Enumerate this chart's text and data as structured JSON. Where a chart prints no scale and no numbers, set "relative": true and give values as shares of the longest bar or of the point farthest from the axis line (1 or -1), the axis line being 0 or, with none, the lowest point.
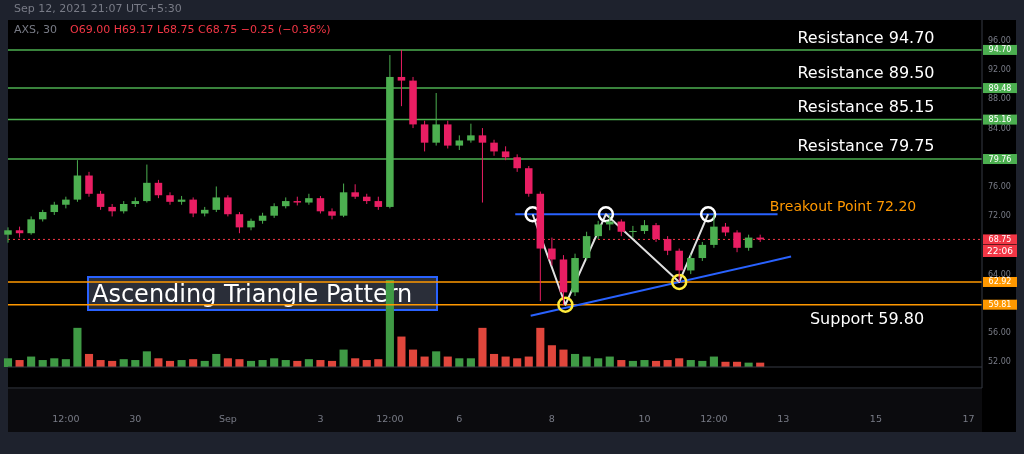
{
  "chart_data": [
    {
      "type": "candlestick",
      "title": "AXS, 30",
      "subtitle": "Sep 12, 2021 21:07 UTC+5:30",
      "x": [
        "2021-08-27T06:00",
        "2021-08-27T12:00",
        "2021-08-27T18:00",
        "2021-08-28T00:00",
        "2021-08-28T06:00",
        "2021-08-28T12:00",
        "2021-08-28T18:00",
        "2021-08-29T00:00",
        "2021-08-29T06:00",
        "2021-08-29T12:00",
        "2021-08-29T18:00",
        "2021-08-30T00:00",
        "2021-08-30T06:00",
        "2021-08-30T12:00",
        "2021-08-30T18:00",
        "2021-08-31T00:00",
        "2021-08-31T06:00",
        "2021-08-31T12:00",
        "2021-08-31T18:00",
        "2021-09-01T00:00",
        "2021-09-01T06:00",
        "2021-09-01T12:00",
        "2021-09-01T18:00",
        "2021-09-02T00:00",
        "2021-09-02T06:00",
        "2021-09-02T12:00",
        "2021-09-02T18:00",
        "2021-09-03T00:00",
        "2021-09-03T06:00",
        "2021-09-03T12:00",
        "2021-09-03T18:00",
        "2021-09-04T00:00",
        "2021-09-04T06:00",
        "2021-09-04T12:00",
        "2021-09-04T18:00",
        "2021-09-05T00:00",
        "2021-09-05T06:00",
        "2021-09-05T12:00",
        "2021-09-05T18:00",
        "2021-09-06T00:00",
        "2021-09-06T06:00",
        "2021-09-06T12:00",
        "2021-09-06T18:00",
        "2021-09-07T00:00",
        "2021-09-07T06:00",
        "2021-09-07T12:00",
        "2021-09-07T18:00",
        "2021-09-08T00:00",
        "2021-09-08T06:00",
        "2021-09-08T12:00",
        "2021-09-08T18:00",
        "2021-09-09T00:00",
        "2021-09-09T06:00",
        "2021-09-09T12:00",
        "2021-09-09T18:00",
        "2021-09-10T00:00",
        "2021-09-10T06:00",
        "2021-09-10T12:00",
        "2021-09-10T18:00",
        "2021-09-11T00:00",
        "2021-09-11T06:00",
        "2021-09-11T12:00",
        "2021-09-11T18:00",
        "2021-09-12T00:00",
        "2021-09-12T06:00",
        "2021-09-12T12:00"
      ],
      "ohlc": [
        [
          69.4,
          70.4,
          68.3,
          70.0
        ],
        [
          70.0,
          70.5,
          69.0,
          69.6
        ],
        [
          69.6,
          71.9,
          69.4,
          71.5
        ],
        [
          71.5,
          72.8,
          71.2,
          72.5
        ],
        [
          72.5,
          73.9,
          72.1,
          73.5
        ],
        [
          73.5,
          74.6,
          73.0,
          74.2
        ],
        [
          74.2,
          79.6,
          73.9,
          77.5
        ],
        [
          77.5,
          78.0,
          74.6,
          75.0
        ],
        [
          75.0,
          75.4,
          72.8,
          73.2
        ],
        [
          73.2,
          73.6,
          71.9,
          72.6
        ],
        [
          72.6,
          74.0,
          72.3,
          73.6
        ],
        [
          73.6,
          74.5,
          73.2,
          74.0
        ],
        [
          74.0,
          79.0,
          73.8,
          76.5
        ],
        [
          76.5,
          76.9,
          74.4,
          74.8
        ],
        [
          74.8,
          75.2,
          73.5,
          73.9
        ],
        [
          73.9,
          74.7,
          73.5,
          74.2
        ],
        [
          74.2,
          74.5,
          71.8,
          72.3
        ],
        [
          72.3,
          73.2,
          71.9,
          72.8
        ],
        [
          72.8,
          76.0,
          72.5,
          74.5
        ],
        [
          74.5,
          74.8,
          71.9,
          72.2
        ],
        [
          72.2,
          72.5,
          69.6,
          70.4
        ],
        [
          70.4,
          71.6,
          70.0,
          71.3
        ],
        [
          71.3,
          72.4,
          70.9,
          72.0
        ],
        [
          72.0,
          73.7,
          71.7,
          73.3
        ],
        [
          73.3,
          74.5,
          73.0,
          74.0
        ],
        [
          74.0,
          74.6,
          73.4,
          73.8
        ],
        [
          73.8,
          75.0,
          73.5,
          74.4
        ],
        [
          74.4,
          74.7,
          72.3,
          72.6
        ],
        [
          72.6,
          73.0,
          71.5,
          72.0
        ],
        [
          72.0,
          76.4,
          71.8,
          75.2
        ],
        [
          75.2,
          76.3,
          74.3,
          74.6
        ],
        [
          74.6,
          75.0,
          73.6,
          74.0
        ],
        [
          74.0,
          74.6,
          72.8,
          73.2
        ],
        [
          73.2,
          94.0,
          73.0,
          91.0
        ],
        [
          91.0,
          94.7,
          87.0,
          90.5
        ],
        [
          90.5,
          91.0,
          84.0,
          84.5
        ],
        [
          84.5,
          85.0,
          80.8,
          82.0
        ],
        [
          82.0,
          88.8,
          81.6,
          84.5
        ],
        [
          84.5,
          85.0,
          81.2,
          81.6
        ],
        [
          81.6,
          83.0,
          81.0,
          82.3
        ],
        [
          82.3,
          84.6,
          82.0,
          83.0
        ],
        [
          83.0,
          84.0,
          73.8,
          82.0
        ],
        [
          82.0,
          82.4,
          80.2,
          80.8
        ],
        [
          80.8,
          81.5,
          79.6,
          80.0
        ],
        [
          80.0,
          80.4,
          78.0,
          78.5
        ],
        [
          78.5,
          78.8,
          74.6,
          75.0
        ],
        [
          75.0,
          75.3,
          60.3,
          67.5
        ],
        [
          67.5,
          69.0,
          65.2,
          66.0
        ],
        [
          66.0,
          66.6,
          59.8,
          61.5
        ],
        [
          61.5,
          66.8,
          61.0,
          66.2
        ],
        [
          66.2,
          69.8,
          65.9,
          69.2
        ],
        [
          69.2,
          71.3,
          68.8,
          70.8
        ],
        [
          70.8,
          72.2,
          70.0,
          71.2
        ],
        [
          71.2,
          71.5,
          69.2,
          69.8
        ],
        [
          69.8,
          70.6,
          69.0,
          69.9
        ],
        [
          69.9,
          71.4,
          69.5,
          70.7
        ],
        [
          70.7,
          71.0,
          68.4,
          68.8
        ],
        [
          68.8,
          69.2,
          66.6,
          67.2
        ],
        [
          67.2,
          67.5,
          62.92,
          64.5
        ],
        [
          64.5,
          66.7,
          64.0,
          66.2
        ],
        [
          66.2,
          68.4,
          65.8,
          68.0
        ],
        [
          68.0,
          72.2,
          67.6,
          70.5
        ],
        [
          70.5,
          71.0,
          69.2,
          69.7
        ],
        [
          69.7,
          70.0,
          67.0,
          67.6
        ],
        [
          67.6,
          69.4,
          67.2,
          69.0
        ],
        [
          69.0,
          69.4,
          68.4,
          68.75
        ]
      ],
      "series": [
        {
          "type": "line",
          "color": "#2962ff",
          "x": [
            "2021-09-07T05:00",
            "2021-09-12T21:00"
          ],
          "values": [
            72.2,
            72.2
          ]
        },
        {
          "type": "line",
          "color": "#2962ff",
          "x": [
            "2021-09-07T13:00",
            "2021-09-13T04:00"
          ],
          "values": [
            58.3,
            66.4
          ]
        },
        {
          "type": "line",
          "color": "#e0e0e0",
          "x": [
            "2021-09-07T14:00",
            "2021-09-08T07:00",
            "2021-09-09T04:00",
            "2021-09-10T18:00",
            "2021-09-11T09:00"
          ],
          "values": [
            72.2,
            59.8,
            72.2,
            62.92,
            72.2
          ]
        },
        {
          "type": "scatter",
          "color": "#ffffff",
          "marker": "circle",
          "x": [
            "2021-09-07T14:00",
            "2021-09-09T04:00",
            "2021-09-11T09:00"
          ],
          "values": [
            72.2,
            72.2,
            72.2
          ]
        },
        {
          "type": "scatter",
          "color": "#ffeb3b",
          "marker": "circle",
          "x": [
            "2021-09-08T07:00",
            "2021-09-10T18:00"
          ],
          "values": [
            59.8,
            62.92
          ]
        }
      ],
      "xlim": [
        "2021-08-27T06:00",
        "2021-09-17T07:00"
      ],
      "xticks": [
        {
          "value": "2021-08-28T12:00",
          "label": "12:00"
        },
        {
          "value": "2021-08-30T00:00",
          "label": "30"
        },
        {
          "value": "2021-09-01T00:00",
          "label": "Sep"
        },
        {
          "value": "2021-09-03T00:00",
          "label": "3"
        },
        {
          "value": "2021-09-04T12:00",
          "label": "12:00"
        },
        {
          "value": "2021-09-06T00:00",
          "label": "6"
        },
        {
          "value": "2021-09-08T00:00",
          "label": "8"
        },
        {
          "value": "2021-09-10T00:00",
          "label": "10"
        },
        {
          "value": "2021-09-11T12:00",
          "label": "12:00"
        },
        {
          "value": "2021-09-13T00:00",
          "label": "13"
        },
        {
          "value": "2021-09-15T00:00",
          "label": "15"
        },
        {
          "value": "2021-09-17T00:00",
          "label": "17"
        }
      ],
      "ylim": [
        48.4,
        98.8
      ],
      "yticks": [
        {
          "value": 52,
          "label": "52.00"
        },
        {
          "value": 56,
          "label": "56.00"
        },
        {
          "value": 64,
          "label": "64.00"
        },
        {
          "value": 72,
          "label": "72.00"
        },
        {
          "value": 76,
          "label": "76.00"
        },
        {
          "value": 84,
          "label": "84.00"
        },
        {
          "value": 88,
          "label": "88.00"
        },
        {
          "value": 92,
          "label": "92.00"
        },
        {
          "value": 96,
          "label": "96.00"
        }
      ],
      "grid": false,
      "ref_lines": [
        {
          "axis": "y",
          "value": 94.7,
          "label": "94.70",
          "color": "#4caf50"
        },
        {
          "axis": "y",
          "value": 89.48,
          "label": "89.48",
          "color": "#4caf50"
        },
        {
          "axis": "y",
          "value": 85.16,
          "label": "85.16",
          "color": "#4caf50"
        },
        {
          "axis": "y",
          "value": 79.76,
          "label": "79.76",
          "color": "#4caf50"
        },
        {
          "axis": "y",
          "value": 68.75,
          "label": "68.75",
          "color": "#f23645",
          "line_style": "dotted"
        },
        {
          "axis": "y",
          "value": 62.92,
          "label": "62.92",
          "color": "#ff9800"
        },
        {
          "axis": "y",
          "value": 59.81,
          "label": "59.81",
          "color": "#ff9800"
        }
      ],
      "annotations": [
        "O69.00 H69.17 L68.75 C68.75 −0.25 (−0.36%)",
        "Ascending Triangle Pattern",
        "Resistance 94.70",
        "Resistance 89.50",
        "Resistance 85.15",
        "Resistance 79.75",
        "Breakout Point 72.20",
        "Support 59.80",
        "22:06"
      ]
    },
    {
      "type": "bar",
      "relative": true,
      "tick_labels": false,
      "x": [
        "2021-08-27T06:00",
        "2021-08-27T12:00",
        "2021-08-27T18:00",
        "2021-08-28T00:00",
        "2021-08-28T06:00",
        "2021-08-28T12:00",
        "2021-08-28T18:00",
        "2021-08-29T00:00",
        "2021-08-29T06:00",
        "2021-08-29T12:00",
        "2021-08-29T18:00",
        "2021-08-30T00:00",
        "2021-08-30T06:00",
        "2021-08-30T12:00",
        "2021-08-30T18:00",
        "2021-08-31T00:00",
        "2021-08-31T06:00",
        "2021-08-31T12:00",
        "2021-08-31T18:00",
        "2021-09-01T00:00",
        "2021-09-01T06:00",
        "2021-09-01T12:00",
        "2021-09-01T18:00",
        "2021-09-02T00:00",
        "2021-09-02T06:00",
        "2021-09-02T12:00",
        "2021-09-02T18:00",
        "2021-09-03T00:00",
        "2021-09-03T06:00",
        "2021-09-03T12:00",
        "2021-09-03T18:00",
        "2021-09-04T00:00",
        "2021-09-04T06:00",
        "2021-09-04T12:00",
        "2021-09-04T18:00",
        "2021-09-05T00:00",
        "2021-09-05T06:00",
        "2021-09-05T12:00",
        "2021-09-05T18:00",
        "2021-09-06T00:00",
        "2021-09-06T06:00",
        "2021-09-06T12:00",
        "2021-09-06T18:00",
        "2021-09-07T00:00",
        "2021-09-07T06:00",
        "2021-09-07T12:00",
        "2021-09-07T18:00",
        "2021-09-08T00:00",
        "2021-09-08T06:00",
        "2021-09-08T12:00",
        "2021-09-08T18:00",
        "2021-09-09T00:00",
        "2021-09-09T06:00",
        "2021-09-09T12:00",
        "2021-09-09T18:00",
        "2021-09-10T00:00",
        "2021-09-10T06:00",
        "2021-09-10T12:00",
        "2021-09-10T18:00",
        "2021-09-11T00:00",
        "2021-09-11T06:00",
        "2021-09-11T12:00",
        "2021-09-11T18:00",
        "2021-09-12T00:00",
        "2021-09-12T06:00",
        "2021-09-12T12:00"
      ],
      "xlim": [
        "2021-08-27T06:00",
        "2021-09-17T07:00"
      ],
      "values": [
        0.1,
        0.08,
        0.12,
        0.08,
        0.1,
        0.09,
        0.45,
        0.15,
        0.08,
        0.07,
        0.09,
        0.08,
        0.18,
        0.1,
        0.07,
        0.08,
        0.09,
        0.07,
        0.15,
        0.1,
        0.09,
        0.07,
        0.08,
        0.1,
        0.08,
        0.07,
        0.09,
        0.08,
        0.07,
        0.2,
        0.1,
        0.08,
        0.09,
        1,
        0.35,
        0.2,
        0.12,
        0.18,
        0.12,
        0.1,
        0.1,
        0.45,
        0.15,
        0.12,
        0.1,
        0.12,
        0.45,
        0.25,
        0.2,
        0.15,
        0.12,
        0.1,
        0.12,
        0.08,
        0.07,
        0.08,
        0.07,
        0.08,
        0.1,
        0.08,
        0.07,
        0.12,
        0.06,
        0.06,
        0.05,
        0.05
      ],
      "colors": [
        "#3f9a45",
        "#e0463c",
        "#3f9a45",
        "#3f9a45",
        "#3f9a45",
        "#3f9a45",
        "#3f9a45",
        "#e0463c",
        "#e0463c",
        "#e0463c",
        "#3f9a45",
        "#3f9a45",
        "#3f9a45",
        "#e0463c",
        "#e0463c",
        "#3f9a45",
        "#e0463c",
        "#3f9a45",
        "#3f9a45",
        "#e0463c",
        "#e0463c",
        "#3f9a45",
        "#3f9a45",
        "#3f9a45",
        "#3f9a45",
        "#e0463c",
        "#3f9a45",
        "#e0463c",
        "#e0463c",
        "#3f9a45",
        "#e0463c",
        "#e0463c",
        "#e0463c",
        "#3f9a45",
        "#e0463c",
        "#e0463c",
        "#e0463c",
        "#3f9a45",
        "#e0463c",
        "#3f9a45",
        "#3f9a45",
        "#e0463c",
        "#e0463c",
        "#e0463c",
        "#e0463c",
        "#e0463c",
        "#e0463c",
        "#e0463c",
        "#e0463c",
        "#3f9a45",
        "#3f9a45",
        "#3f9a45",
        "#3f9a45",
        "#e0463c",
        "#3f9a45",
        "#3f9a45",
        "#e0463c",
        "#e0463c",
        "#e0463c",
        "#3f9a45",
        "#3f9a45",
        "#3f9a45",
        "#e0463c",
        "#e0463c",
        "#3f9a45",
        "#e0463c"
      ]
    }
  ]
}
